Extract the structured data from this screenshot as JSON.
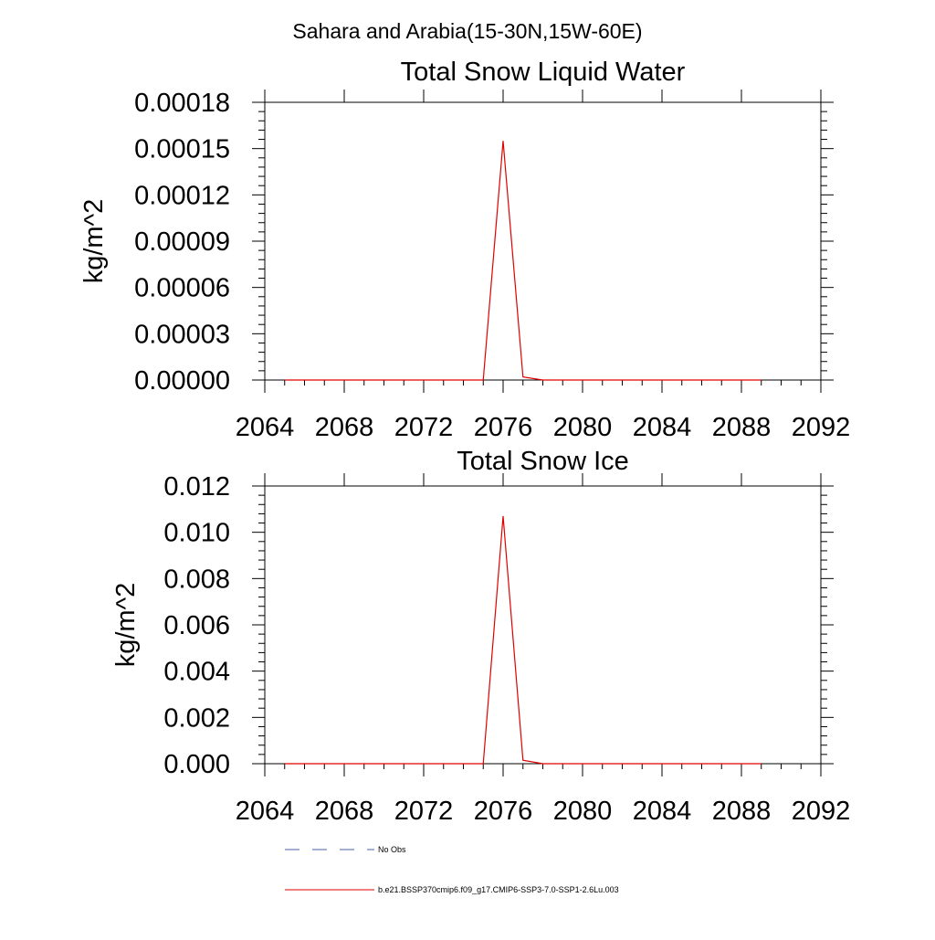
{
  "figure": {
    "title": "Sahara and Arabia(15-30N,15W-60E)"
  },
  "colors": {
    "model_line": "#e00000",
    "obs_line": "#4a5fa8",
    "axis": "#000000"
  },
  "legend": {
    "placement": "bottom-left",
    "items": [
      {
        "label": "No Obs",
        "style": "dashed",
        "color": "#4a5fa8"
      },
      {
        "label": "b.e21.BSSP370cmip6.f09_g17.CMIP6-SSP3-7.0-SSP1-2.6Lu.003",
        "style": "solid",
        "color": "#e00000"
      }
    ]
  },
  "chart_data": [
    {
      "type": "line",
      "title": "Total Snow Liquid Water",
      "xlabel": "",
      "ylabel": "kg/m^2",
      "xlim": [
        2064,
        2092
      ],
      "ylim": [
        0,
        0.00018
      ],
      "xticks": [
        2064,
        2068,
        2072,
        2076,
        2080,
        2084,
        2088,
        2092
      ],
      "yticks": [
        0,
        3e-05,
        6e-05,
        9e-05,
        0.00012,
        0.00015,
        0.00018
      ],
      "ytick_labels": [
        "0.00000",
        "0.00003",
        "0.00006",
        "0.00009",
        "0.00012",
        "0.00015",
        "0.00018"
      ],
      "grid": false,
      "series": [
        {
          "name": "b.e21.BSSP370cmip6.f09_g17.CMIP6-SSP3-7.0-SSP1-2.6Lu.003",
          "x": [
            2065,
            2066,
            2067,
            2068,
            2069,
            2070,
            2071,
            2072,
            2073,
            2074,
            2075,
            2076,
            2077,
            2078,
            2079,
            2080,
            2081,
            2082,
            2083,
            2084,
            2085,
            2086,
            2087,
            2088,
            2089
          ],
          "y": [
            0,
            0,
            0,
            0,
            0,
            0,
            0,
            0,
            0,
            0,
            0,
            0.000155,
            2e-06,
            0,
            0,
            0,
            0,
            0,
            0,
            0,
            0,
            0,
            0,
            0,
            0
          ]
        }
      ]
    },
    {
      "type": "line",
      "title": "Total Snow Ice",
      "xlabel": "",
      "ylabel": "kg/m^2",
      "xlim": [
        2064,
        2092
      ],
      "ylim": [
        0,
        0.012
      ],
      "xticks": [
        2064,
        2068,
        2072,
        2076,
        2080,
        2084,
        2088,
        2092
      ],
      "yticks": [
        0,
        0.002,
        0.004,
        0.006,
        0.008,
        0.01,
        0.012
      ],
      "ytick_labels": [
        "0.000",
        "0.002",
        "0.004",
        "0.006",
        "0.008",
        "0.010",
        "0.012"
      ],
      "grid": false,
      "series": [
        {
          "name": "b.e21.BSSP370cmip6.f09_g17.CMIP6-SSP3-7.0-SSP1-2.6Lu.003",
          "x": [
            2065,
            2066,
            2067,
            2068,
            2069,
            2070,
            2071,
            2072,
            2073,
            2074,
            2075,
            2076,
            2077,
            2078,
            2079,
            2080,
            2081,
            2082,
            2083,
            2084,
            2085,
            2086,
            2087,
            2088,
            2089
          ],
          "y": [
            0,
            0,
            0,
            0,
            0,
            0,
            0,
            0,
            0,
            0,
            0,
            0.0107,
            0.00015,
            0,
            0,
            0,
            0,
            0,
            0,
            0,
            0,
            0,
            0,
            0,
            0
          ]
        }
      ]
    }
  ]
}
